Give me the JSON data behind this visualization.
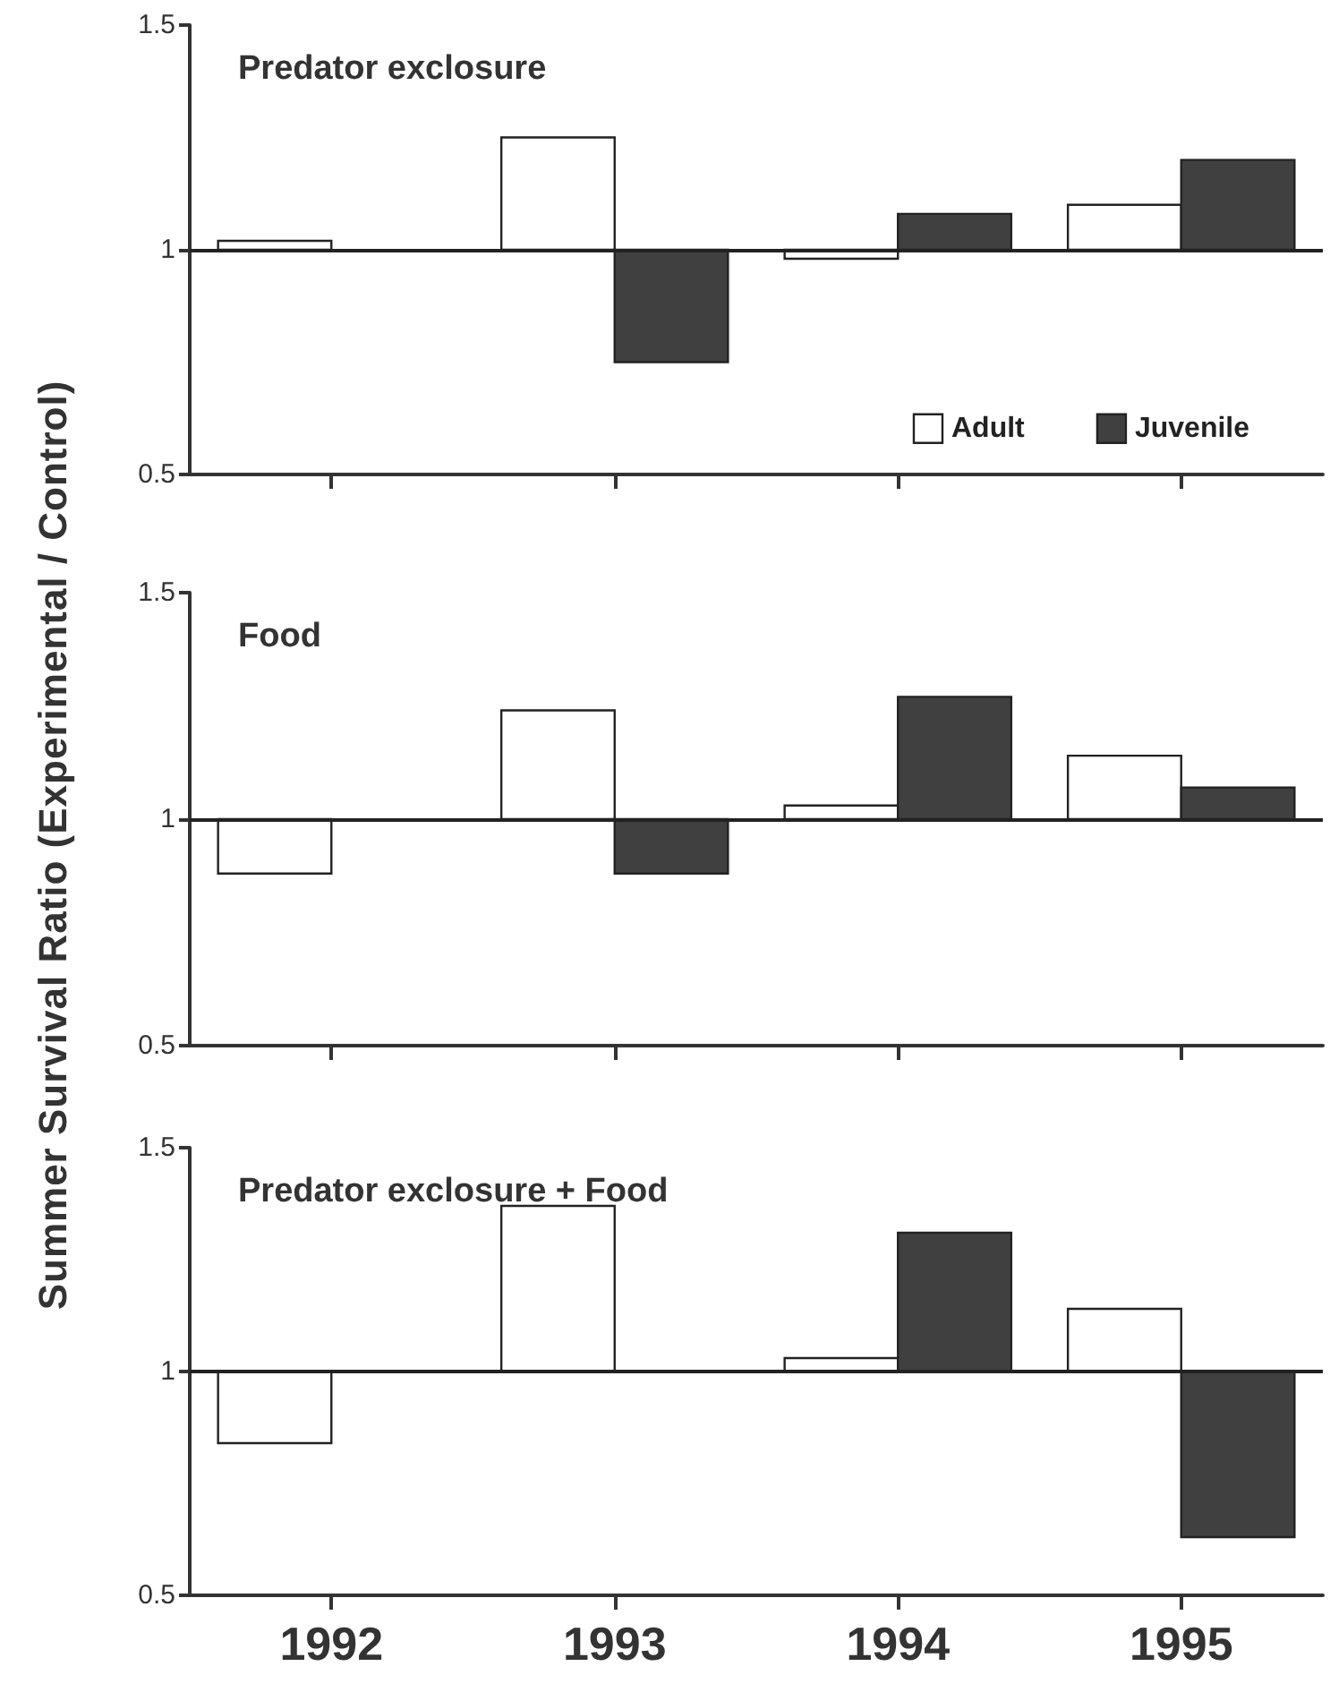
{
  "chart_data": [
    {
      "type": "bar",
      "title": "Predator exclosure",
      "categories": [
        "1992",
        "1993",
        "1994",
        "1995"
      ],
      "series": [
        {
          "name": "Adult",
          "color": "#ffffff",
          "values": [
            0.02,
            0.25,
            -0.02,
            0.1
          ],
          "base": [
            1,
            1,
            1,
            1
          ]
        },
        {
          "name": "Juvenile",
          "color": "#404040",
          "values": [
            null,
            -0.25,
            0.08,
            0.2
          ],
          "base": [
            null,
            1,
            1,
            1
          ]
        }
      ],
      "ylim": [
        0.5,
        1.5
      ],
      "yticks": [
        0.5,
        1,
        1.5
      ],
      "ref_lines": [
        {
          "axis": "y",
          "value": 1
        }
      ],
      "grid": false,
      "legend": "bottom right",
      "tick_labels": "y"
    },
    {
      "type": "bar",
      "title": "Food",
      "ylabel": "Summer Survival Ratio (Experimental / Control)",
      "categories": [
        "1992",
        "1993",
        "1994",
        "1995"
      ],
      "series": [
        {
          "color": "#ffffff",
          "values": [
            -0.12,
            0.24,
            0.03,
            0.14
          ],
          "base": [
            1,
            1,
            1,
            1
          ]
        },
        {
          "color": "#404040",
          "values": [
            null,
            -0.12,
            0.27,
            0.07
          ],
          "base": [
            null,
            1,
            1,
            1
          ]
        }
      ],
      "ylim": [
        0.5,
        1.5
      ],
      "yticks": [
        0.5,
        1,
        1.5
      ],
      "ref_lines": [
        {
          "axis": "y",
          "value": 1
        }
      ],
      "grid": false,
      "legend": false,
      "tick_labels": "y"
    },
    {
      "type": "bar",
      "title": "Predator exclosure + Food",
      "categories": [
        "1992",
        "1993",
        "1994",
        "1995"
      ],
      "series": [
        {
          "color": "#ffffff",
          "values": [
            -0.16,
            0.37,
            0.03,
            0.14
          ],
          "base": [
            1,
            1,
            1,
            1
          ]
        },
        {
          "color": "#404040",
          "values": [
            null,
            0,
            0.31,
            -0.37
          ],
          "base": [
            null,
            1,
            1,
            1
          ]
        }
      ],
      "ylim": [
        0.5,
        1.5
      ],
      "yticks": [
        0.5,
        1,
        1.5
      ],
      "ref_lines": [
        {
          "axis": "y",
          "value": 1
        }
      ],
      "grid": false,
      "legend": false
    }
  ]
}
